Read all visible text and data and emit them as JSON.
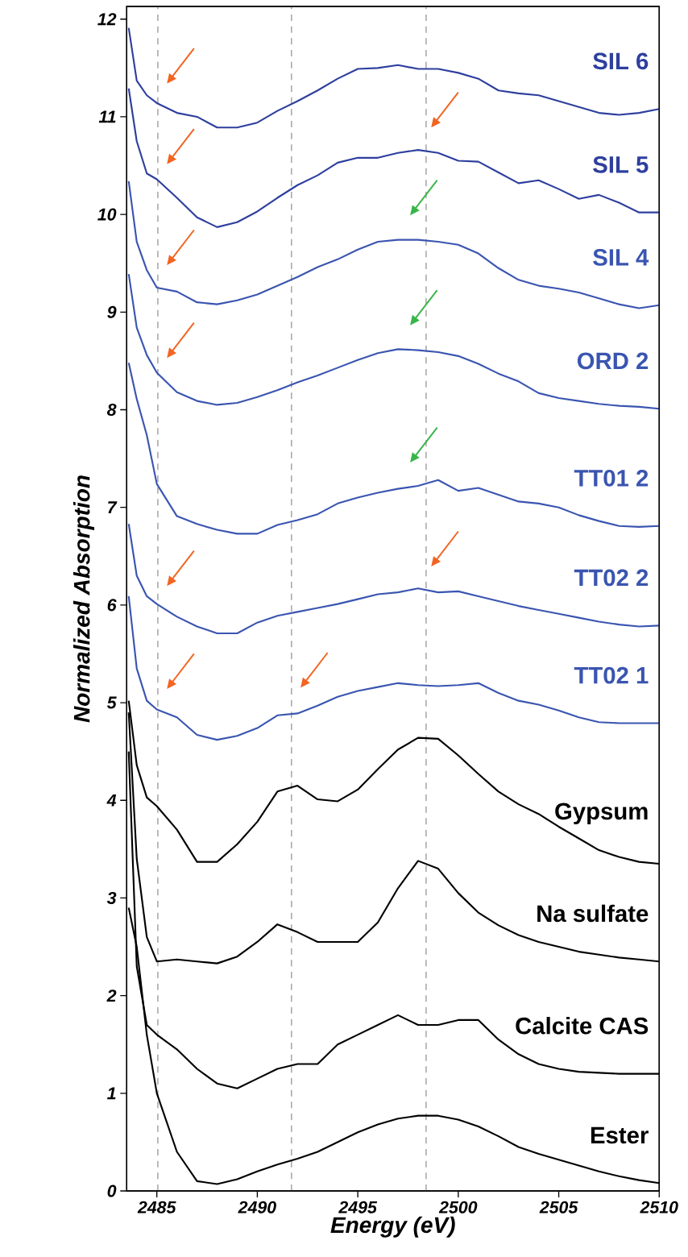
{
  "chart_data": {
    "type": "line",
    "xlabel": "Energy (eV)",
    "ylabel": "Normalized Absorption",
    "x": [
      2483.6,
      2484,
      2484.5,
      2485,
      2486,
      2487,
      2488,
      2489,
      2490,
      2491,
      2492,
      2493,
      2494,
      2495,
      2496,
      2497,
      2498,
      2499,
      2500,
      2501,
      2502,
      2503,
      2504,
      2505,
      2506,
      2507,
      2508,
      2509,
      2510
    ],
    "xlim": [
      2483.5,
      2510
    ],
    "ylim": [
      0,
      12.13
    ],
    "xticks": [
      2485,
      2490,
      2495,
      2500,
      2505,
      2510
    ],
    "yticks": [
      0,
      1,
      2,
      3,
      4,
      5,
      6,
      7,
      8,
      9,
      10,
      11,
      12
    ],
    "grid": false,
    "legend": false,
    "marker": "none",
    "line_style": "solid",
    "ref_lines": [
      {
        "axis": "x",
        "value": 2485.05,
        "color": "#999999",
        "line_style": "dashed"
      },
      {
        "axis": "x",
        "value": 2491.7,
        "color": "#999999",
        "line_style": "dashed"
      },
      {
        "axis": "x",
        "value": 2498.4,
        "color": "#999999",
        "line_style": "dashed"
      }
    ],
    "series": [
      {
        "name": "SIL 6",
        "color": "#2e3f9e",
        "values": [
          11.91,
          11.37,
          11.22,
          11.14,
          11.04,
          11.0,
          10.89,
          10.89,
          10.94,
          11.06,
          11.16,
          11.27,
          11.39,
          11.49,
          11.5,
          11.53,
          11.49,
          11.49,
          11.45,
          11.39,
          11.27,
          11.24,
          11.22,
          11.16,
          11.1,
          11.04,
          11.02,
          11.04,
          11.08
        ]
      },
      {
        "name": "SIL 5",
        "color": "#2e3f9e",
        "values": [
          11.29,
          10.75,
          10.42,
          10.36,
          10.17,
          9.97,
          9.87,
          9.92,
          10.03,
          10.17,
          10.3,
          10.4,
          10.53,
          10.58,
          10.58,
          10.63,
          10.66,
          10.63,
          10.55,
          10.54,
          10.43,
          10.32,
          10.35,
          10.26,
          10.16,
          10.2,
          10.12,
          10.02,
          10.02
        ]
      },
      {
        "name": "SIL 4",
        "color": "#3a55b0",
        "values": [
          10.34,
          9.72,
          9.43,
          9.25,
          9.21,
          9.1,
          9.08,
          9.12,
          9.18,
          9.27,
          9.36,
          9.46,
          9.54,
          9.64,
          9.72,
          9.74,
          9.74,
          9.72,
          9.69,
          9.6,
          9.45,
          9.33,
          9.27,
          9.24,
          9.2,
          9.14,
          9.08,
          9.04,
          9.07
        ]
      },
      {
        "name": "ORD 2",
        "color": "#3a55b0",
        "values": [
          9.39,
          8.84,
          8.56,
          8.38,
          8.18,
          8.09,
          8.05,
          8.07,
          8.13,
          8.2,
          8.28,
          8.35,
          8.43,
          8.51,
          8.58,
          8.62,
          8.61,
          8.59,
          8.55,
          8.47,
          8.37,
          8.29,
          8.17,
          8.12,
          8.09,
          8.06,
          8.04,
          8.03,
          8.01
        ]
      },
      {
        "name": "TT01 2",
        "color": "#3a55b0",
        "values": [
          8.48,
          8.11,
          7.74,
          7.24,
          6.91,
          6.83,
          6.77,
          6.73,
          6.73,
          6.82,
          6.87,
          6.93,
          7.04,
          7.1,
          7.15,
          7.19,
          7.22,
          7.28,
          7.17,
          7.2,
          7.13,
          7.06,
          7.04,
          7.0,
          6.92,
          6.86,
          6.81,
          6.8,
          6.81
        ]
      },
      {
        "name": "TT02 2",
        "color": "#3a55b0",
        "values": [
          6.83,
          6.3,
          6.09,
          6.01,
          5.88,
          5.78,
          5.71,
          5.71,
          5.82,
          5.89,
          5.93,
          5.97,
          6.01,
          6.06,
          6.11,
          6.13,
          6.17,
          6.13,
          6.14,
          6.09,
          6.04,
          5.99,
          5.95,
          5.91,
          5.87,
          5.83,
          5.8,
          5.78,
          5.79
        ]
      },
      {
        "name": "TT02 1",
        "color": "#3a55b0",
        "values": [
          6.09,
          5.35,
          5.02,
          4.93,
          4.85,
          4.67,
          4.62,
          4.66,
          4.74,
          4.87,
          4.89,
          4.97,
          5.06,
          5.12,
          5.16,
          5.2,
          5.18,
          5.17,
          5.18,
          5.2,
          5.1,
          5.02,
          4.98,
          4.92,
          4.85,
          4.8,
          4.79,
          4.79,
          4.79
        ]
      },
      {
        "name": "Gypsum",
        "color": "#000000",
        "values": [
          5.02,
          4.36,
          4.03,
          3.94,
          3.7,
          3.37,
          3.37,
          3.55,
          3.78,
          4.09,
          4.15,
          4.01,
          3.99,
          4.11,
          4.32,
          4.52,
          4.64,
          4.63,
          4.46,
          4.27,
          4.09,
          3.96,
          3.86,
          3.73,
          3.61,
          3.49,
          3.42,
          3.37,
          3.35
        ]
      },
      {
        "name": "Na sulfate",
        "color": "#000000",
        "values": [
          4.9,
          3.4,
          2.6,
          2.35,
          2.37,
          2.35,
          2.33,
          2.4,
          2.55,
          2.73,
          2.65,
          2.55,
          2.55,
          2.55,
          2.75,
          3.1,
          3.38,
          3.3,
          3.05,
          2.85,
          2.72,
          2.62,
          2.55,
          2.5,
          2.45,
          2.42,
          2.39,
          2.37,
          2.35
        ]
      },
      {
        "name": "Calcite CAS",
        "color": "#000000",
        "values": [
          4.5,
          2.3,
          1.7,
          1.6,
          1.45,
          1.25,
          1.1,
          1.05,
          1.15,
          1.25,
          1.3,
          1.3,
          1.5,
          1.6,
          1.7,
          1.8,
          1.7,
          1.7,
          1.75,
          1.75,
          1.55,
          1.4,
          1.3,
          1.25,
          1.22,
          1.21,
          1.2,
          1.2,
          1.2
        ]
      },
      {
        "name": "Ester",
        "color": "#000000",
        "values": [
          2.9,
          2.5,
          1.6,
          1.0,
          0.4,
          0.1,
          0.07,
          0.12,
          0.2,
          0.27,
          0.33,
          0.4,
          0.5,
          0.6,
          0.68,
          0.74,
          0.77,
          0.77,
          0.73,
          0.66,
          0.56,
          0.45,
          0.38,
          0.32,
          0.26,
          0.2,
          0.15,
          0.11,
          0.08
        ]
      }
    ]
  }
}
